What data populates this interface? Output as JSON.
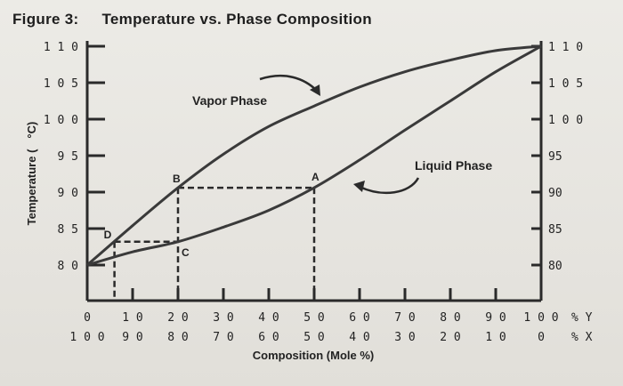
{
  "figure": {
    "label": "Figure 3:",
    "title": "Temperature vs. Phase Composition"
  },
  "chart_data": {
    "type": "line",
    "title": "Temperature vs. Phase Composition",
    "xlabel": "Composition (Mole %)",
    "ylabel": "Temperature (°C)",
    "ylabel_parts": {
      "main": "Temperature (",
      "unit": "°C)"
    },
    "x_unit_labels": {
      "y": "% Y",
      "x": "% X"
    },
    "xlim": [
      0,
      100
    ],
    "ylim": [
      80,
      110
    ],
    "x_ticks": [
      0,
      10,
      20,
      30,
      40,
      50,
      60,
      70,
      80,
      90,
      100
    ],
    "x_ticks_secondary": [
      100,
      90,
      80,
      70,
      60,
      50,
      40,
      30,
      20,
      10,
      0
    ],
    "y_ticks_left": [
      80,
      85,
      90,
      95,
      100,
      105,
      110
    ],
    "y_tick_labels_left": [
      "8 0",
      "8 5",
      "9 0",
      "9 5",
      "1 0 0",
      "1 0 5",
      "1 1 0"
    ],
    "y_ticks_right": [
      80,
      85,
      90,
      95,
      100,
      105,
      110
    ],
    "y_tick_labels_right": [
      "80",
      "85",
      "90",
      "95",
      "1 0 0",
      "1 0 5",
      "1 1 0"
    ],
    "series": [
      {
        "name": "Vapor Phase",
        "color": "#333333",
        "x": [
          0,
          10,
          20,
          30,
          40,
          50,
          60,
          70,
          80,
          90,
          100
        ],
        "y": [
          80,
          85.4,
          90.6,
          95.2,
          99,
          101.8,
          104.4,
          106.5,
          108.1,
          109.4,
          110
        ]
      },
      {
        "name": "Liquid Phase",
        "color": "#333333",
        "x": [
          0,
          10,
          20,
          30,
          40,
          50,
          60,
          70,
          80,
          90,
          100
        ],
        "y": [
          80,
          81.8,
          83.2,
          85.2,
          87.5,
          90.6,
          94.4,
          98.5,
          102.5,
          106.5,
          110
        ]
      }
    ],
    "points": [
      {
        "label": "A",
        "x": 50,
        "y": 90.6
      },
      {
        "label": "B",
        "x": 20,
        "y": 90.6
      },
      {
        "label": "C",
        "x": 20,
        "y": 83.2
      },
      {
        "label": "D",
        "x": 6,
        "y": 83.2
      }
    ],
    "annotations": [
      "Vapor Phase",
      "Liquid Phase"
    ],
    "grid": false,
    "legend": "none"
  }
}
